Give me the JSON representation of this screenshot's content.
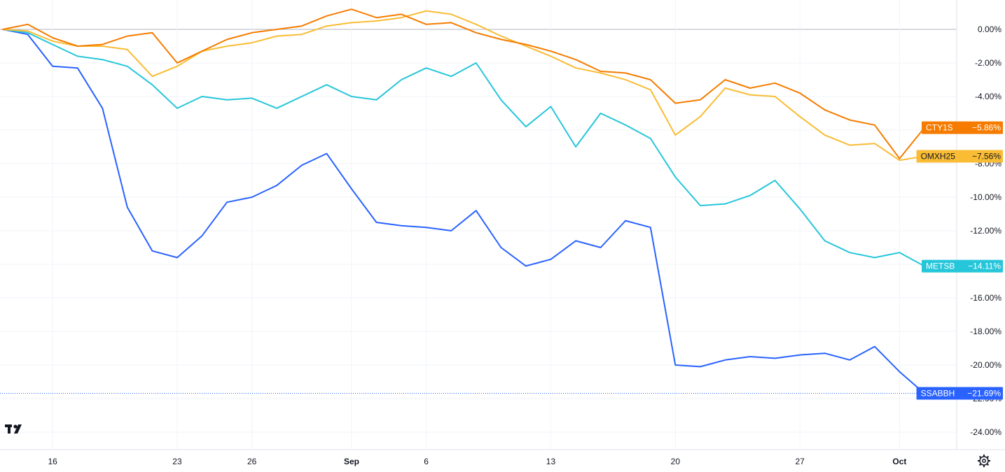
{
  "chart_data": {
    "type": "line",
    "y_unit": "%",
    "ylim": [
      -25,
      1.5
    ],
    "y_ticks": [
      "0.00%",
      "-2.00%",
      "-4.00%",
      "-6.00%",
      "-8.00%",
      "-10.00%",
      "-12.00%",
      "-14.00%",
      "-16.00%",
      "-18.00%",
      "-20.00%",
      "-22.00%",
      "-24.00%"
    ],
    "y_tick_values": [
      0,
      -2,
      -4,
      -6,
      -8,
      -10,
      -12,
      -14,
      -16,
      -18,
      -20,
      -22,
      -24
    ],
    "x_ticks": [
      {
        "label": "16",
        "index": 2,
        "bold": false
      },
      {
        "label": "23",
        "index": 7,
        "bold": false
      },
      {
        "label": "26",
        "index": 10,
        "bold": false
      },
      {
        "label": "Sep",
        "index": 14,
        "bold": true
      },
      {
        "label": "6",
        "index": 17,
        "bold": false
      },
      {
        "label": "13",
        "index": 22,
        "bold": false
      },
      {
        "label": "20",
        "index": 27,
        "bold": false
      },
      {
        "label": "27",
        "index": 32,
        "bold": false
      },
      {
        "label": "Oct",
        "index": 36,
        "bold": true
      }
    ],
    "x_count": 38,
    "grid": true,
    "series": [
      {
        "name": "CTY1S",
        "color": "#f57c00",
        "last_label": "−5.86%",
        "values": [
          0,
          0.3,
          -0.5,
          -1.0,
          -0.9,
          -0.4,
          -0.2,
          -2.0,
          -1.3,
          -0.6,
          -0.2,
          0.0,
          0.2,
          0.8,
          1.2,
          0.7,
          0.9,
          0.3,
          0.4,
          -0.2,
          -0.6,
          -0.9,
          -1.3,
          -1.8,
          -2.5,
          -2.6,
          -3.0,
          -4.4,
          -4.2,
          -3.0,
          -3.5,
          -3.2,
          -3.8,
          -4.8,
          -5.4,
          -5.7,
          -7.7,
          -5.86
        ]
      },
      {
        "name": "OMXH25",
        "color": "#f9bc34",
        "last_label": "−7.56%",
        "values": [
          0,
          -0.1,
          -0.7,
          -1.0,
          -1.0,
          -1.2,
          -2.8,
          -2.2,
          -1.3,
          -1.0,
          -0.8,
          -0.4,
          -0.3,
          0.2,
          0.4,
          0.5,
          0.7,
          1.1,
          0.9,
          0.3,
          -0.4,
          -1.0,
          -1.6,
          -2.3,
          -2.6,
          -3.0,
          -3.6,
          -6.3,
          -5.2,
          -3.5,
          -3.9,
          -4.0,
          -5.2,
          -6.3,
          -6.9,
          -6.8,
          -7.8,
          -7.56
        ]
      },
      {
        "name": "METSB",
        "color": "#26c6da",
        "last_label": "−14.11%",
        "values": [
          0,
          -0.2,
          -0.9,
          -1.6,
          -1.8,
          -2.2,
          -3.3,
          -4.7,
          -4.0,
          -4.2,
          -4.1,
          -4.7,
          -4.0,
          -3.3,
          -4.0,
          -4.2,
          -3.0,
          -2.3,
          -2.8,
          -2.0,
          -4.2,
          -5.8,
          -4.6,
          -7.0,
          -5.0,
          -5.7,
          -6.5,
          -8.8,
          -10.5,
          -10.4,
          -9.9,
          -9.0,
          -10.7,
          -12.6,
          -13.3,
          -13.6,
          -13.3,
          -14.11
        ]
      },
      {
        "name": "SSABBH",
        "color": "#2962ff",
        "last_label": "−21.69%",
        "values": [
          0,
          -0.3,
          -2.2,
          -2.3,
          -4.7,
          -10.6,
          -13.2,
          -13.6,
          -12.3,
          -10.3,
          -10.0,
          -9.3,
          -8.1,
          -7.4,
          -9.5,
          -11.5,
          -11.7,
          -11.8,
          -12.0,
          -10.8,
          -13.0,
          -14.1,
          -13.7,
          -12.6,
          -13.0,
          -11.4,
          -11.8,
          -20.0,
          -20.1,
          -19.7,
          -19.5,
          -19.6,
          -19.4,
          -19.3,
          -19.7,
          -18.9,
          -20.4,
          -21.69
        ]
      }
    ],
    "baseline_label": "0.00%"
  },
  "footer": {
    "logo_text": "TV"
  }
}
